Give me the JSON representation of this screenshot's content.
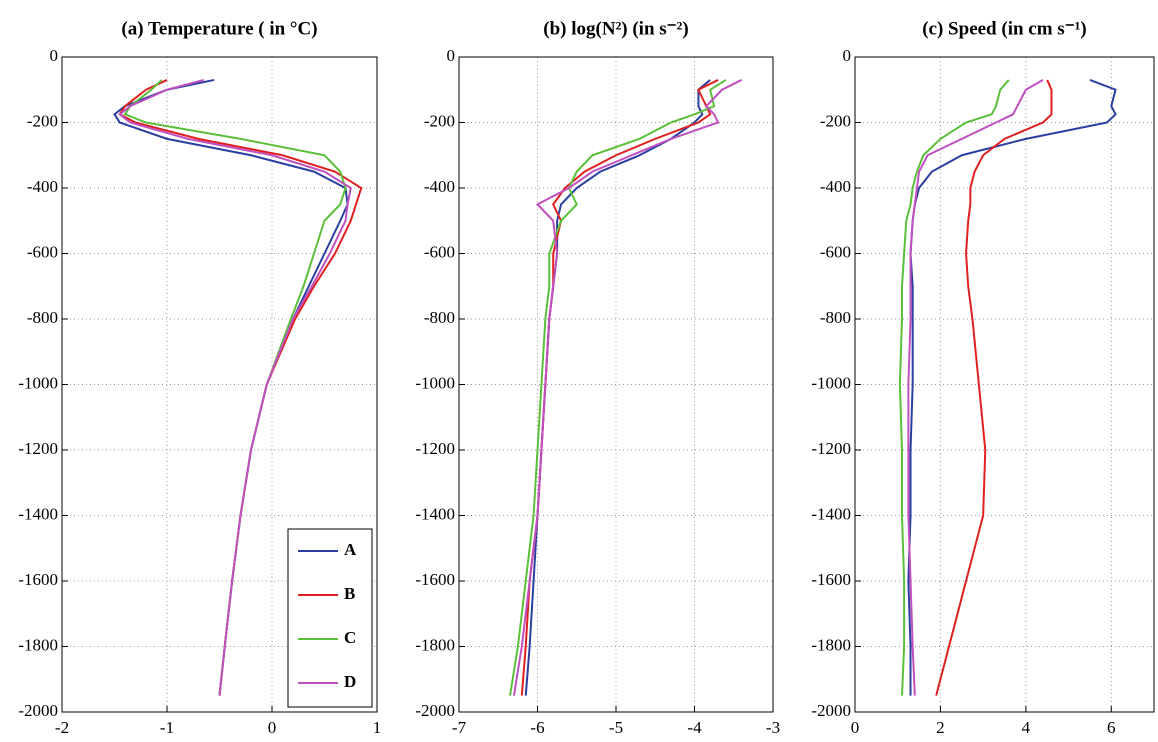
{
  "chart_data": [
    {
      "type": "line",
      "title": "(a) Temperature ( in °C)",
      "y": [
        -70,
        -100,
        -150,
        -175,
        -200,
        -250,
        -300,
        -350,
        -400,
        -450,
        -500,
        -600,
        -700,
        -800,
        -1000,
        -1200,
        -1400,
        -1600,
        -1800,
        -1950
      ],
      "series": [
        {
          "name": "A",
          "color": "#2b3fa0",
          "values": [
            -0.55,
            -1.0,
            -1.4,
            -1.5,
            -1.45,
            -1.0,
            -0.2,
            0.4,
            0.7,
            0.72,
            0.65,
            0.5,
            0.35,
            0.2,
            -0.05,
            -0.2,
            -0.3,
            -0.38,
            -0.45,
            -0.5
          ]
        },
        {
          "name": "B",
          "color": "#e02020",
          "values": [
            -1.0,
            -1.2,
            -1.4,
            -1.45,
            -1.3,
            -0.7,
            0.1,
            0.6,
            0.85,
            0.8,
            0.75,
            0.6,
            0.4,
            0.22,
            -0.05,
            -0.2,
            -0.3,
            -0.38,
            -0.45,
            -0.5
          ]
        },
        {
          "name": "C",
          "color": "#5cbf3a",
          "values": [
            -1.05,
            -1.15,
            -1.35,
            -1.4,
            -1.2,
            -0.3,
            0.5,
            0.65,
            0.7,
            0.65,
            0.5,
            0.4,
            0.3,
            0.18,
            -0.05,
            -0.2,
            -0.3,
            -0.38,
            -0.45,
            -0.5
          ]
        },
        {
          "name": "D",
          "color": "#c050c0",
          "values": [
            -0.65,
            -1.0,
            -1.35,
            -1.45,
            -1.35,
            -0.8,
            0.0,
            0.5,
            0.75,
            0.72,
            0.7,
            0.55,
            0.38,
            0.2,
            -0.05,
            -0.2,
            -0.3,
            -0.38,
            -0.45,
            -0.5
          ]
        }
      ],
      "xlim": [
        -2,
        1
      ],
      "xticks": [
        -2,
        -1,
        0,
        1
      ],
      "ylim": [
        -2000,
        0
      ],
      "yticks": [
        0,
        -200,
        -400,
        -600,
        -800,
        -1000,
        -1200,
        -1400,
        -1600,
        -1800,
        -2000
      ],
      "grid": true,
      "legend": "lower right"
    },
    {
      "type": "line",
      "title": "(b) log(N²) (in s⁻²)",
      "y": [
        -70,
        -100,
        -150,
        -175,
        -200,
        -250,
        -300,
        -350,
        -400,
        -450,
        -500,
        -600,
        -700,
        -800,
        -1000,
        -1200,
        -1400,
        -1600,
        -1800,
        -1950
      ],
      "series": [
        {
          "name": "A",
          "color": "#2b3fa0",
          "values": [
            -3.8,
            -3.95,
            -3.95,
            -3.9,
            -4.0,
            -4.3,
            -4.7,
            -5.2,
            -5.5,
            -5.7,
            -5.75,
            -5.75,
            -5.8,
            -5.85,
            -5.9,
            -5.95,
            -6.0,
            -6.05,
            -6.1,
            -6.15
          ]
        },
        {
          "name": "B",
          "color": "#e02020",
          "values": [
            -3.7,
            -3.95,
            -3.85,
            -3.8,
            -3.95,
            -4.5,
            -5.0,
            -5.4,
            -5.65,
            -5.8,
            -5.7,
            -5.8,
            -5.8,
            -5.85,
            -5.9,
            -5.95,
            -6.0,
            -6.1,
            -6.15,
            -6.2
          ]
        },
        {
          "name": "C",
          "color": "#5cbf3a",
          "values": [
            -3.6,
            -3.8,
            -3.75,
            -4.0,
            -4.3,
            -4.7,
            -5.3,
            -5.5,
            -5.6,
            -5.5,
            -5.7,
            -5.85,
            -5.85,
            -5.9,
            -5.95,
            -6.0,
            -6.05,
            -6.15,
            -6.25,
            -6.35
          ]
        },
        {
          "name": "D",
          "color": "#c050c0",
          "values": [
            -3.4,
            -3.65,
            -3.85,
            -3.75,
            -3.7,
            -4.3,
            -4.8,
            -5.3,
            -5.6,
            -6.0,
            -5.8,
            -5.75,
            -5.8,
            -5.85,
            -5.9,
            -5.95,
            -6.0,
            -6.1,
            -6.2,
            -6.3
          ]
        }
      ],
      "xlim": [
        -7,
        -3
      ],
      "xticks": [
        -7,
        -6,
        -5,
        -4,
        -3
      ],
      "ylim": [
        -2000,
        0
      ],
      "yticks": [
        0,
        -200,
        -400,
        -600,
        -800,
        -1000,
        -1200,
        -1400,
        -1600,
        -1800,
        -2000
      ],
      "grid": true
    },
    {
      "type": "line",
      "title": "(c) Speed (in cm s⁻¹)",
      "y": [
        -70,
        -100,
        -150,
        -175,
        -200,
        -250,
        -300,
        -350,
        -400,
        -450,
        -500,
        -600,
        -700,
        -800,
        -1000,
        -1200,
        -1400,
        -1600,
        -1800,
        -1950
      ],
      "series": [
        {
          "name": "A",
          "color": "#2b3fa0",
          "values": [
            5.5,
            6.1,
            6.0,
            6.1,
            5.9,
            4.0,
            2.5,
            1.8,
            1.5,
            1.4,
            1.35,
            1.3,
            1.35,
            1.35,
            1.35,
            1.3,
            1.3,
            1.25,
            1.3,
            1.3
          ]
        },
        {
          "name": "B",
          "color": "#e02020",
          "values": [
            4.5,
            4.6,
            4.6,
            4.6,
            4.4,
            3.5,
            3.0,
            2.8,
            2.7,
            2.7,
            2.65,
            2.6,
            2.65,
            2.75,
            2.9,
            3.05,
            3.0,
            2.6,
            2.2,
            1.9
          ]
        },
        {
          "name": "C",
          "color": "#5cbf3a",
          "values": [
            3.6,
            3.4,
            3.3,
            3.2,
            2.6,
            2.0,
            1.6,
            1.45,
            1.35,
            1.3,
            1.2,
            1.15,
            1.1,
            1.1,
            1.05,
            1.1,
            1.1,
            1.15,
            1.15,
            1.1
          ]
        },
        {
          "name": "D",
          "color": "#c050c0",
          "values": [
            4.4,
            4.0,
            3.8,
            3.7,
            3.3,
            2.5,
            1.7,
            1.5,
            1.45,
            1.4,
            1.35,
            1.3,
            1.3,
            1.3,
            1.25,
            1.25,
            1.25,
            1.3,
            1.35,
            1.4
          ]
        }
      ],
      "xlim": [
        0,
        7
      ],
      "xticks": [
        0,
        2,
        4,
        6
      ],
      "ylim": [
        -2000,
        0
      ],
      "yticks": [
        0,
        -200,
        -400,
        -600,
        -800,
        -1000,
        -1200,
        -1400,
        -1600,
        -1800,
        -2000
      ],
      "grid": true
    }
  ]
}
